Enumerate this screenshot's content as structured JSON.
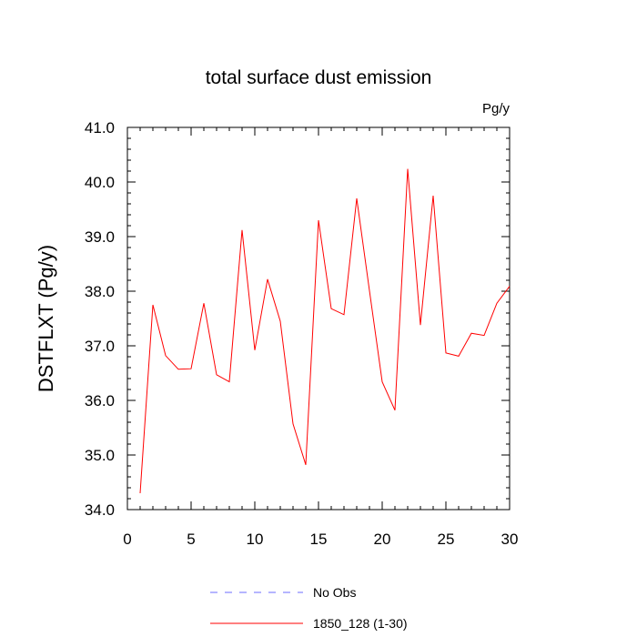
{
  "chart_data": {
    "type": "line",
    "title": "total surface dust emission",
    "units_label": "Pg/y",
    "ylabel": "DSTFLXT  (Pg/y)",
    "xlabel": "",
    "xlim": [
      0,
      30
    ],
    "ylim": [
      34.0,
      41.0
    ],
    "x_ticks": [
      0,
      5,
      10,
      15,
      20,
      25,
      30
    ],
    "x_tick_labels": [
      "0",
      "5",
      "10",
      "15",
      "20",
      "25",
      "30"
    ],
    "y_ticks": [
      34.0,
      35.0,
      36.0,
      37.0,
      38.0,
      39.0,
      40.0,
      41.0
    ],
    "y_tick_labels": [
      "34.0",
      "35.0",
      "36.0",
      "37.0",
      "38.0",
      "39.0",
      "40.0",
      "41.0"
    ],
    "grid": false,
    "legend_position": "bottom-center",
    "series": [
      {
        "name": "No Obs",
        "color": "#6b6bff",
        "dashed": true,
        "x": [],
        "values": []
      },
      {
        "name": "1850_128 (1-30)",
        "color": "#ff0000",
        "dashed": false,
        "x": [
          1,
          2,
          3,
          4,
          5,
          6,
          7,
          8,
          9,
          10,
          11,
          12,
          13,
          14,
          15,
          16,
          17,
          18,
          19,
          20,
          21,
          22,
          23,
          24,
          25,
          26,
          27,
          28,
          29,
          30
        ],
        "values": [
          34.3,
          37.75,
          36.82,
          36.57,
          36.58,
          37.78,
          36.47,
          36.34,
          39.12,
          36.92,
          38.22,
          37.45,
          35.57,
          34.82,
          39.3,
          37.68,
          37.57,
          39.7,
          38.01,
          36.34,
          35.82,
          40.24,
          37.38,
          39.75,
          36.87,
          36.81,
          37.23,
          37.19,
          37.78,
          38.09
        ]
      }
    ]
  }
}
